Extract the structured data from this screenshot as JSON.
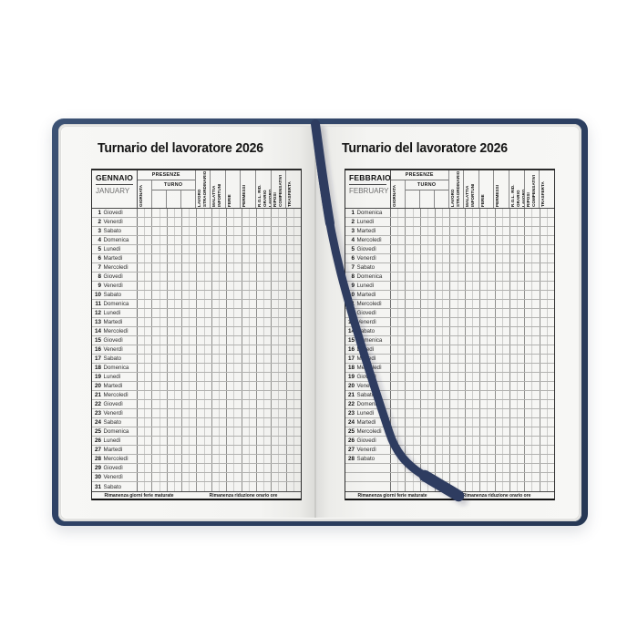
{
  "page_title": "Turnario del lavoratore 2026",
  "table_header": {
    "presenze": "PRESENZE",
    "turno": "TURNO",
    "giornata": "GIORNATA",
    "categories": [
      "LAVORO STRAORDINARIO",
      "MALATTIA INFORTUNI",
      "FERIE",
      "PERMESSI",
      "R.O.L. RID. ORARIO LAVORO",
      "RIPOSI COMPENSATIVI",
      "TRASFERTA"
    ]
  },
  "footer": {
    "left_label": "Rimanenza giorni ferie maturate",
    "right_label": "Rimanenza riduzione orario ore"
  },
  "months": [
    {
      "name_it": "GENNAIO",
      "name_en": "JANUARY",
      "trailing_empty_rows": 0,
      "days": [
        {
          "n": 1,
          "name": "Giovedì"
        },
        {
          "n": 2,
          "name": "Venerdì"
        },
        {
          "n": 3,
          "name": "Sabato"
        },
        {
          "n": 4,
          "name": "Domenica"
        },
        {
          "n": 5,
          "name": "Lunedì"
        },
        {
          "n": 6,
          "name": "Martedì"
        },
        {
          "n": 7,
          "name": "Mercoledì"
        },
        {
          "n": 8,
          "name": "Giovedì"
        },
        {
          "n": 9,
          "name": "Venerdì"
        },
        {
          "n": 10,
          "name": "Sabato"
        },
        {
          "n": 11,
          "name": "Domenica"
        },
        {
          "n": 12,
          "name": "Lunedì"
        },
        {
          "n": 13,
          "name": "Martedì"
        },
        {
          "n": 14,
          "name": "Mercoledì"
        },
        {
          "n": 15,
          "name": "Giovedì"
        },
        {
          "n": 16,
          "name": "Venerdì"
        },
        {
          "n": 17,
          "name": "Sabato"
        },
        {
          "n": 18,
          "name": "Domenica"
        },
        {
          "n": 19,
          "name": "Lunedì"
        },
        {
          "n": 20,
          "name": "Martedì"
        },
        {
          "n": 21,
          "name": "Mercoledì"
        },
        {
          "n": 22,
          "name": "Giovedì"
        },
        {
          "n": 23,
          "name": "Venerdì"
        },
        {
          "n": 24,
          "name": "Sabato"
        },
        {
          "n": 25,
          "name": "Domenica"
        },
        {
          "n": 26,
          "name": "Lunedì"
        },
        {
          "n": 27,
          "name": "Martedì"
        },
        {
          "n": 28,
          "name": "Mercoledì"
        },
        {
          "n": 29,
          "name": "Giovedì"
        },
        {
          "n": 30,
          "name": "Venerdì"
        },
        {
          "n": 31,
          "name": "Sabato"
        }
      ]
    },
    {
      "name_it": "FEBBRAIO",
      "name_en": "FEBRUARY",
      "trailing_empty_rows": 3,
      "days": [
        {
          "n": 1,
          "name": "Domenica"
        },
        {
          "n": 2,
          "name": "Lunedì"
        },
        {
          "n": 3,
          "name": "Martedì"
        },
        {
          "n": 4,
          "name": "Mercoledì"
        },
        {
          "n": 5,
          "name": "Giovedì"
        },
        {
          "n": 6,
          "name": "Venerdì"
        },
        {
          "n": 7,
          "name": "Sabato"
        },
        {
          "n": 8,
          "name": "Domenica"
        },
        {
          "n": 9,
          "name": "Lunedì"
        },
        {
          "n": 10,
          "name": "Martedì"
        },
        {
          "n": 11,
          "name": "Mercoledì"
        },
        {
          "n": 12,
          "name": "Giovedì"
        },
        {
          "n": 13,
          "name": "Venerdì"
        },
        {
          "n": 14,
          "name": "Sabato"
        },
        {
          "n": 15,
          "name": "Domenica"
        },
        {
          "n": 16,
          "name": "Lunedì"
        },
        {
          "n": 17,
          "name": "Martedì"
        },
        {
          "n": 18,
          "name": "Mercoledì"
        },
        {
          "n": 19,
          "name": "Giovedì"
        },
        {
          "n": 20,
          "name": "Venerdì"
        },
        {
          "n": 21,
          "name": "Sabato"
        },
        {
          "n": 22,
          "name": "Domenica"
        },
        {
          "n": 23,
          "name": "Lunedì"
        },
        {
          "n": 24,
          "name": "Martedì"
        },
        {
          "n": 25,
          "name": "Mercoledì"
        },
        {
          "n": 26,
          "name": "Giovedì"
        },
        {
          "n": 27,
          "name": "Venerdì"
        },
        {
          "n": 28,
          "name": "Sabato"
        }
      ]
    }
  ],
  "colors": {
    "cover": "#2e4164",
    "ribbon": "#2e3c60",
    "page": "#f4f4f2",
    "grid_line": "#8f8f8d",
    "text": "#161616"
  }
}
